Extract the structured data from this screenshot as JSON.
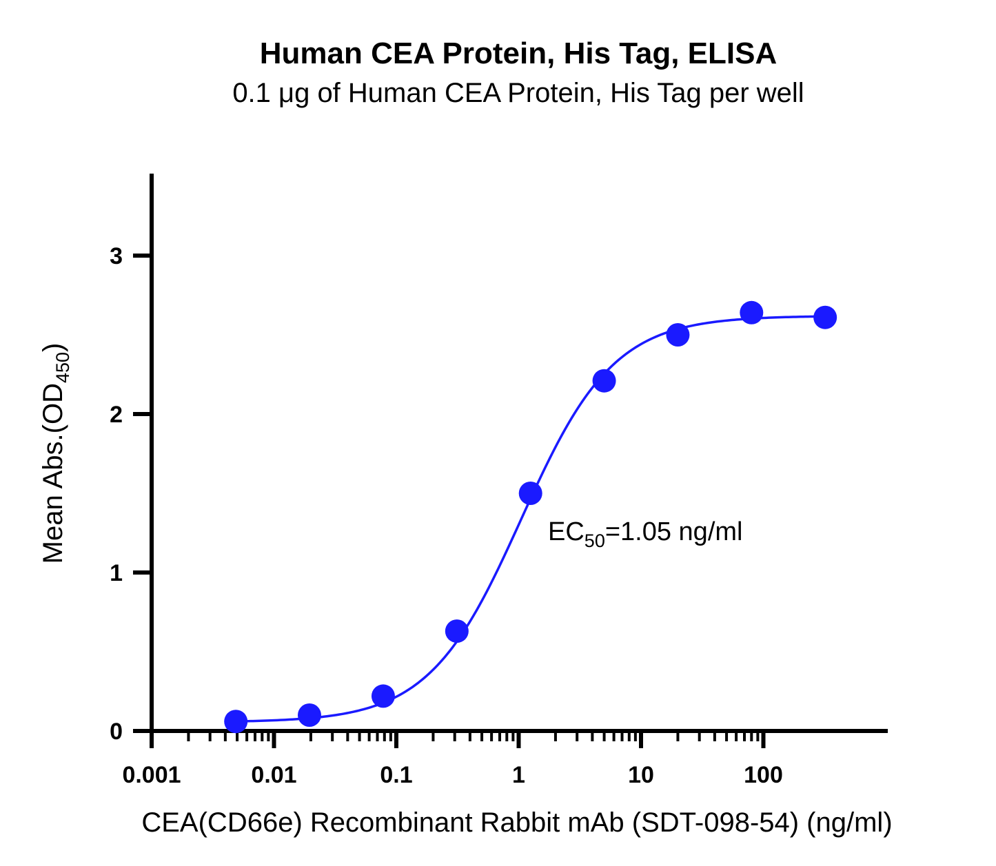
{
  "chart_data": {
    "type": "scatter",
    "title": "Human CEA Protein, His Tag, ELISA",
    "subtitle": "0.1 μg of Human CEA Protein, His Tag per well",
    "xlabel": "CEA(CD66e) Recombinant Rabbit mAb (SDT-098-54) (ng/ml)",
    "ylabel": {
      "main": "Mean Abs.(OD",
      "subscript": "450",
      "suffix": ")"
    },
    "x_scale": "log",
    "xlim": [
      0.001,
      1000
    ],
    "ylim": [
      0,
      3.5
    ],
    "x_ticks": [
      0.001,
      0.01,
      0.1,
      1,
      10,
      100
    ],
    "x_tick_labels": [
      "0.001",
      "0.01",
      "0.1",
      "1",
      "10",
      "100"
    ],
    "y_ticks": [
      0,
      1,
      2,
      3
    ],
    "y_tick_labels": [
      "0",
      "1",
      "2",
      "3"
    ],
    "grid": false,
    "series": [
      {
        "color": "#1a1aff",
        "x": [
          0.00488,
          0.0195,
          0.0781,
          0.3125,
          1.25,
          5,
          20,
          80,
          320
        ],
        "y": [
          0.06,
          0.1,
          0.22,
          0.63,
          1.5,
          2.21,
          2.5,
          2.64,
          2.61
        ]
      }
    ],
    "fit": {
      "type": "4PL",
      "bottom": 0.055,
      "top": 2.62,
      "ec50": 1.05,
      "hill": 1.15
    },
    "annotation": {
      "prefix": "EC",
      "subscript": "50",
      "suffix": "=1.05 ng/ml"
    }
  }
}
